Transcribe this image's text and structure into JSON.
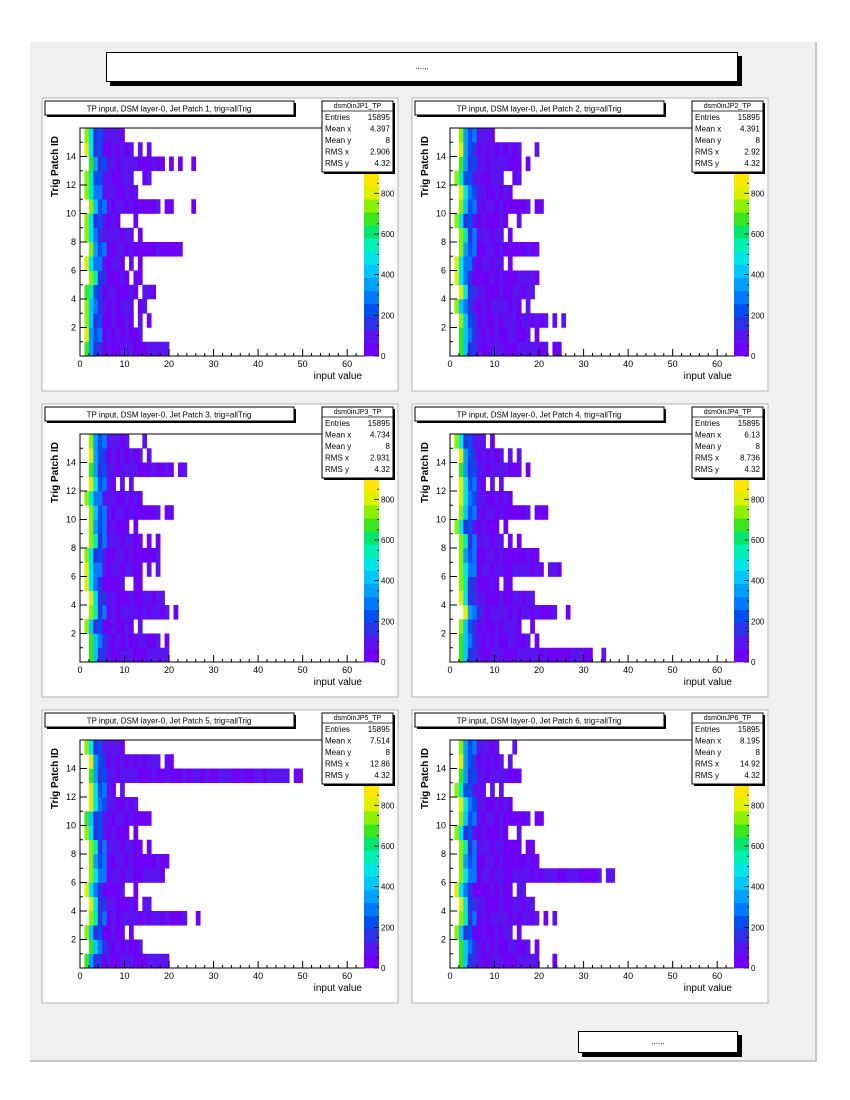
{
  "page": {
    "title": "....,.",
    "footer": "......"
  },
  "colors": {
    "palette": [
      "#6e00f5",
      "#5a14f0",
      "#2d32e6",
      "#0050f0",
      "#0078ff",
      "#00a0ff",
      "#00c8ff",
      "#00e6e6",
      "#00f0b4",
      "#00e66e",
      "#3ce61e",
      "#8cf000",
      "#dcf000",
      "#ffe600"
    ],
    "frame_bg": "#f0f0f0",
    "pad_bg": "#ffffff"
  },
  "chart_data": [
    {
      "type": "heatmap",
      "title": "TP input, DSM layer-0, Jet Patch 1, trig=allTrig",
      "xlabel": "input value",
      "ylabel": "Trig Patch ID",
      "xlim": [
        0,
        64
      ],
      "ylim": [
        0,
        16
      ],
      "zlim": [
        0,
        900
      ],
      "xticks": [
        0,
        10,
        20,
        30,
        40,
        50,
        60
      ],
      "yticks": [
        2,
        4,
        6,
        8,
        10,
        12,
        14
      ],
      "zticks": [
        0,
        200,
        400,
        600,
        800
      ],
      "stats": {
        "name": "dsm0inJP1_TP",
        "rows": [
          [
            "Entries",
            "15895"
          ],
          [
            "Mean x",
            "4.397"
          ],
          [
            "Mean y",
            "8"
          ],
          [
            "RMS x",
            "2.906"
          ],
          [
            "RMS y",
            "4.32"
          ]
        ]
      },
      "rows": [
        [
          1,
          21
        ],
        [
          1,
          16
        ],
        [
          1,
          16
        ],
        [
          1,
          15
        ],
        [
          1,
          17
        ],
        [
          2,
          15
        ],
        [
          1,
          14
        ],
        [
          2,
          23
        ],
        [
          1,
          14
        ],
        [
          1,
          13
        ],
        [
          2,
          21,
          25
        ],
        [
          1,
          13
        ],
        [
          1,
          16
        ],
        [
          2,
          23,
          25
        ],
        [
          1,
          16
        ],
        [
          1,
          13
        ]
      ],
      "grid": false,
      "legend": "top-right"
    },
    {
      "type": "heatmap",
      "title": "TP input, DSM layer-0, Jet Patch 2, trig=allTrig",
      "xlabel": "input value",
      "ylabel": "Trig Patch ID",
      "xlim": [
        0,
        64
      ],
      "ylim": [
        0,
        16
      ],
      "zlim": [
        0,
        900
      ],
      "xticks": [
        0,
        10,
        20,
        30,
        40,
        50,
        60
      ],
      "yticks": [
        2,
        4,
        6,
        8,
        10,
        12,
        14
      ],
      "zticks": [
        0,
        200,
        400,
        600,
        800
      ],
      "stats": {
        "name": "dsm0inJP2_TP",
        "rows": [
          [
            "Entries",
            "15895"
          ],
          [
            "Mean x",
            "4.391"
          ],
          [
            "Mean y",
            "8"
          ],
          [
            "RMS x",
            "2.92"
          ],
          [
            "RMS y",
            "4.32"
          ]
        ]
      },
      "rows": [
        [
          2,
          26
        ],
        [
          2,
          20
        ],
        [
          2,
          26
        ],
        [
          1,
          18
        ],
        [
          2,
          20
        ],
        [
          1,
          20
        ],
        [
          1,
          15
        ],
        [
          2,
          20
        ],
        [
          2,
          15
        ],
        [
          1,
          16
        ],
        [
          2,
          21
        ],
        [
          2,
          17
        ],
        [
          1,
          16
        ],
        [
          2,
          20
        ],
        [
          2,
          20
        ],
        [
          2,
          13
        ]
      ],
      "grid": false,
      "legend": "top-right"
    },
    {
      "type": "heatmap",
      "title": "TP input, DSM layer-0, Jet Patch 3, trig=allTrig",
      "xlabel": "input value",
      "ylabel": "Trig Patch ID",
      "xlim": [
        0,
        64
      ],
      "ylim": [
        0,
        16
      ],
      "zlim": [
        0,
        900
      ],
      "xticks": [
        0,
        10,
        20,
        30,
        40,
        50,
        60
      ],
      "yticks": [
        2,
        4,
        6,
        8,
        10,
        12,
        14
      ],
      "zticks": [
        0,
        200,
        400,
        600,
        800
      ],
      "stats": {
        "name": "dsm0inJP3_TP",
        "rows": [
          [
            "Entries",
            "15895"
          ],
          [
            "Mean x",
            "4.734"
          ],
          [
            "Mean y",
            "8"
          ],
          [
            "RMS x",
            "2.931"
          ],
          [
            "RMS y",
            "4.32"
          ]
        ]
      },
      "rows": [
        [
          2,
          23
        ],
        [
          2,
          21
        ],
        [
          1,
          15
        ],
        [
          2,
          23
        ],
        [
          2,
          20
        ],
        [
          1,
          14
        ],
        [
          1,
          18
        ],
        [
          1,
          18
        ],
        [
          2,
          18
        ],
        [
          2,
          15
        ],
        [
          2,
          21
        ],
        [
          1,
          17
        ],
        [
          2,
          12
        ],
        [
          2,
          25
        ],
        [
          2,
          17
        ],
        [
          2,
          15
        ]
      ],
      "grid": false,
      "legend": "top-right"
    },
    {
      "type": "heatmap",
      "title": "TP input, DSM layer-0, Jet Patch 4, trig=allTrig",
      "xlabel": "input value",
      "ylabel": "Trig Patch ID",
      "xlim": [
        0,
        64
      ],
      "ylim": [
        0,
        16
      ],
      "zlim": [
        0,
        900
      ],
      "xticks": [
        0,
        10,
        20,
        30,
        40,
        50,
        60
      ],
      "yticks": [
        2,
        4,
        6,
        8,
        10,
        12,
        14
      ],
      "zticks": [
        0,
        200,
        400,
        600,
        800
      ],
      "stats": {
        "name": "dsm0inJP4_TP",
        "rows": [
          [
            "Entries",
            "15895"
          ],
          [
            "Mean x",
            "6.13"
          ],
          [
            "Mean y",
            "8"
          ],
          [
            "RMS x",
            "8.736"
          ],
          [
            "RMS y",
            "4.32"
          ]
        ]
      },
      "rows": [
        [
          2,
          35
        ],
        [
          2,
          21
        ],
        [
          2,
          19
        ],
        [
          3,
          28
        ],
        [
          2,
          20
        ],
        [
          2,
          15
        ],
        [
          2,
          25
        ],
        [
          2,
          20
        ],
        [
          2,
          16
        ],
        [
          1,
          15
        ],
        [
          2,
          22
        ],
        [
          2,
          18
        ],
        [
          2,
          12
        ],
        [
          2,
          19
        ],
        [
          2,
          16
        ],
        [
          1,
          12
        ]
      ],
      "grid": false,
      "legend": "top-right"
    },
    {
      "type": "heatmap",
      "title": "TP input, DSM layer-0, Jet Patch 5, trig=allTrig",
      "xlabel": "input value",
      "ylabel": "Trig Patch ID",
      "xlim": [
        0,
        64
      ],
      "ylim": [
        0,
        16
      ],
      "zlim": [
        0,
        900
      ],
      "xticks": [
        0,
        10,
        20,
        30,
        40,
        50,
        60
      ],
      "yticks": [
        2,
        4,
        6,
        8,
        10,
        12,
        14
      ],
      "zticks": [
        0,
        200,
        400,
        600,
        800
      ],
      "stats": {
        "name": "dsm0inJP5_TP",
        "rows": [
          [
            "Entries",
            "15895"
          ],
          [
            "Mean x",
            "7.514"
          ],
          [
            "Mean y",
            "8"
          ],
          [
            "RMS x",
            "12.86"
          ],
          [
            "RMS y",
            "4.32"
          ]
        ]
      },
      "rows": [
        [
          1,
          22
        ],
        [
          2,
          16
        ],
        [
          1,
          13
        ],
        [
          2,
          28
        ],
        [
          2,
          16
        ],
        [
          1,
          13
        ],
        [
          2,
          22
        ],
        [
          2,
          20
        ],
        [
          2,
          17
        ],
        [
          1,
          15
        ],
        [
          1,
          16
        ],
        [
          2,
          13
        ],
        [
          2,
          10
        ],
        [
          2,
          50
        ],
        [
          2,
          22
        ],
        [
          1,
          13
        ]
      ],
      "grid": false,
      "legend": "top-right"
    },
    {
      "type": "heatmap",
      "title": "TP input, DSM layer-0, Jet Patch 6, trig=allTrig",
      "xlabel": "input value",
      "ylabel": "Trig Patch ID",
      "xlim": [
        0,
        64
      ],
      "ylim": [
        0,
        16
      ],
      "zlim": [
        0,
        900
      ],
      "xticks": [
        0,
        10,
        20,
        30,
        40,
        50,
        60
      ],
      "yticks": [
        2,
        4,
        6,
        8,
        10,
        12,
        14
      ],
      "zticks": [
        0,
        200,
        400,
        600,
        800
      ],
      "stats": {
        "name": "dsm0inJP6_TP",
        "rows": [
          [
            "Entries",
            "15895"
          ],
          [
            "Mean x",
            "8.195"
          ],
          [
            "Mean y",
            "8"
          ],
          [
            "RMS x",
            "14.92"
          ],
          [
            "RMS y",
            "4.32"
          ]
        ]
      },
      "rows": [
        [
          2,
          24
        ],
        [
          2,
          21
        ],
        [
          1,
          17
        ],
        [
          2,
          24
        ],
        [
          2,
          19
        ],
        [
          1,
          17
        ],
        [
          2,
          37
        ],
        [
          2,
          20
        ],
        [
          2,
          19
        ],
        [
          1,
          16
        ],
        [
          2,
          21
        ],
        [
          2,
          16
        ],
        [
          1,
          12
        ],
        [
          2,
          16
        ],
        [
          2,
          15
        ],
        [
          2,
          15
        ]
      ],
      "grid": false,
      "legend": "top-right"
    }
  ]
}
